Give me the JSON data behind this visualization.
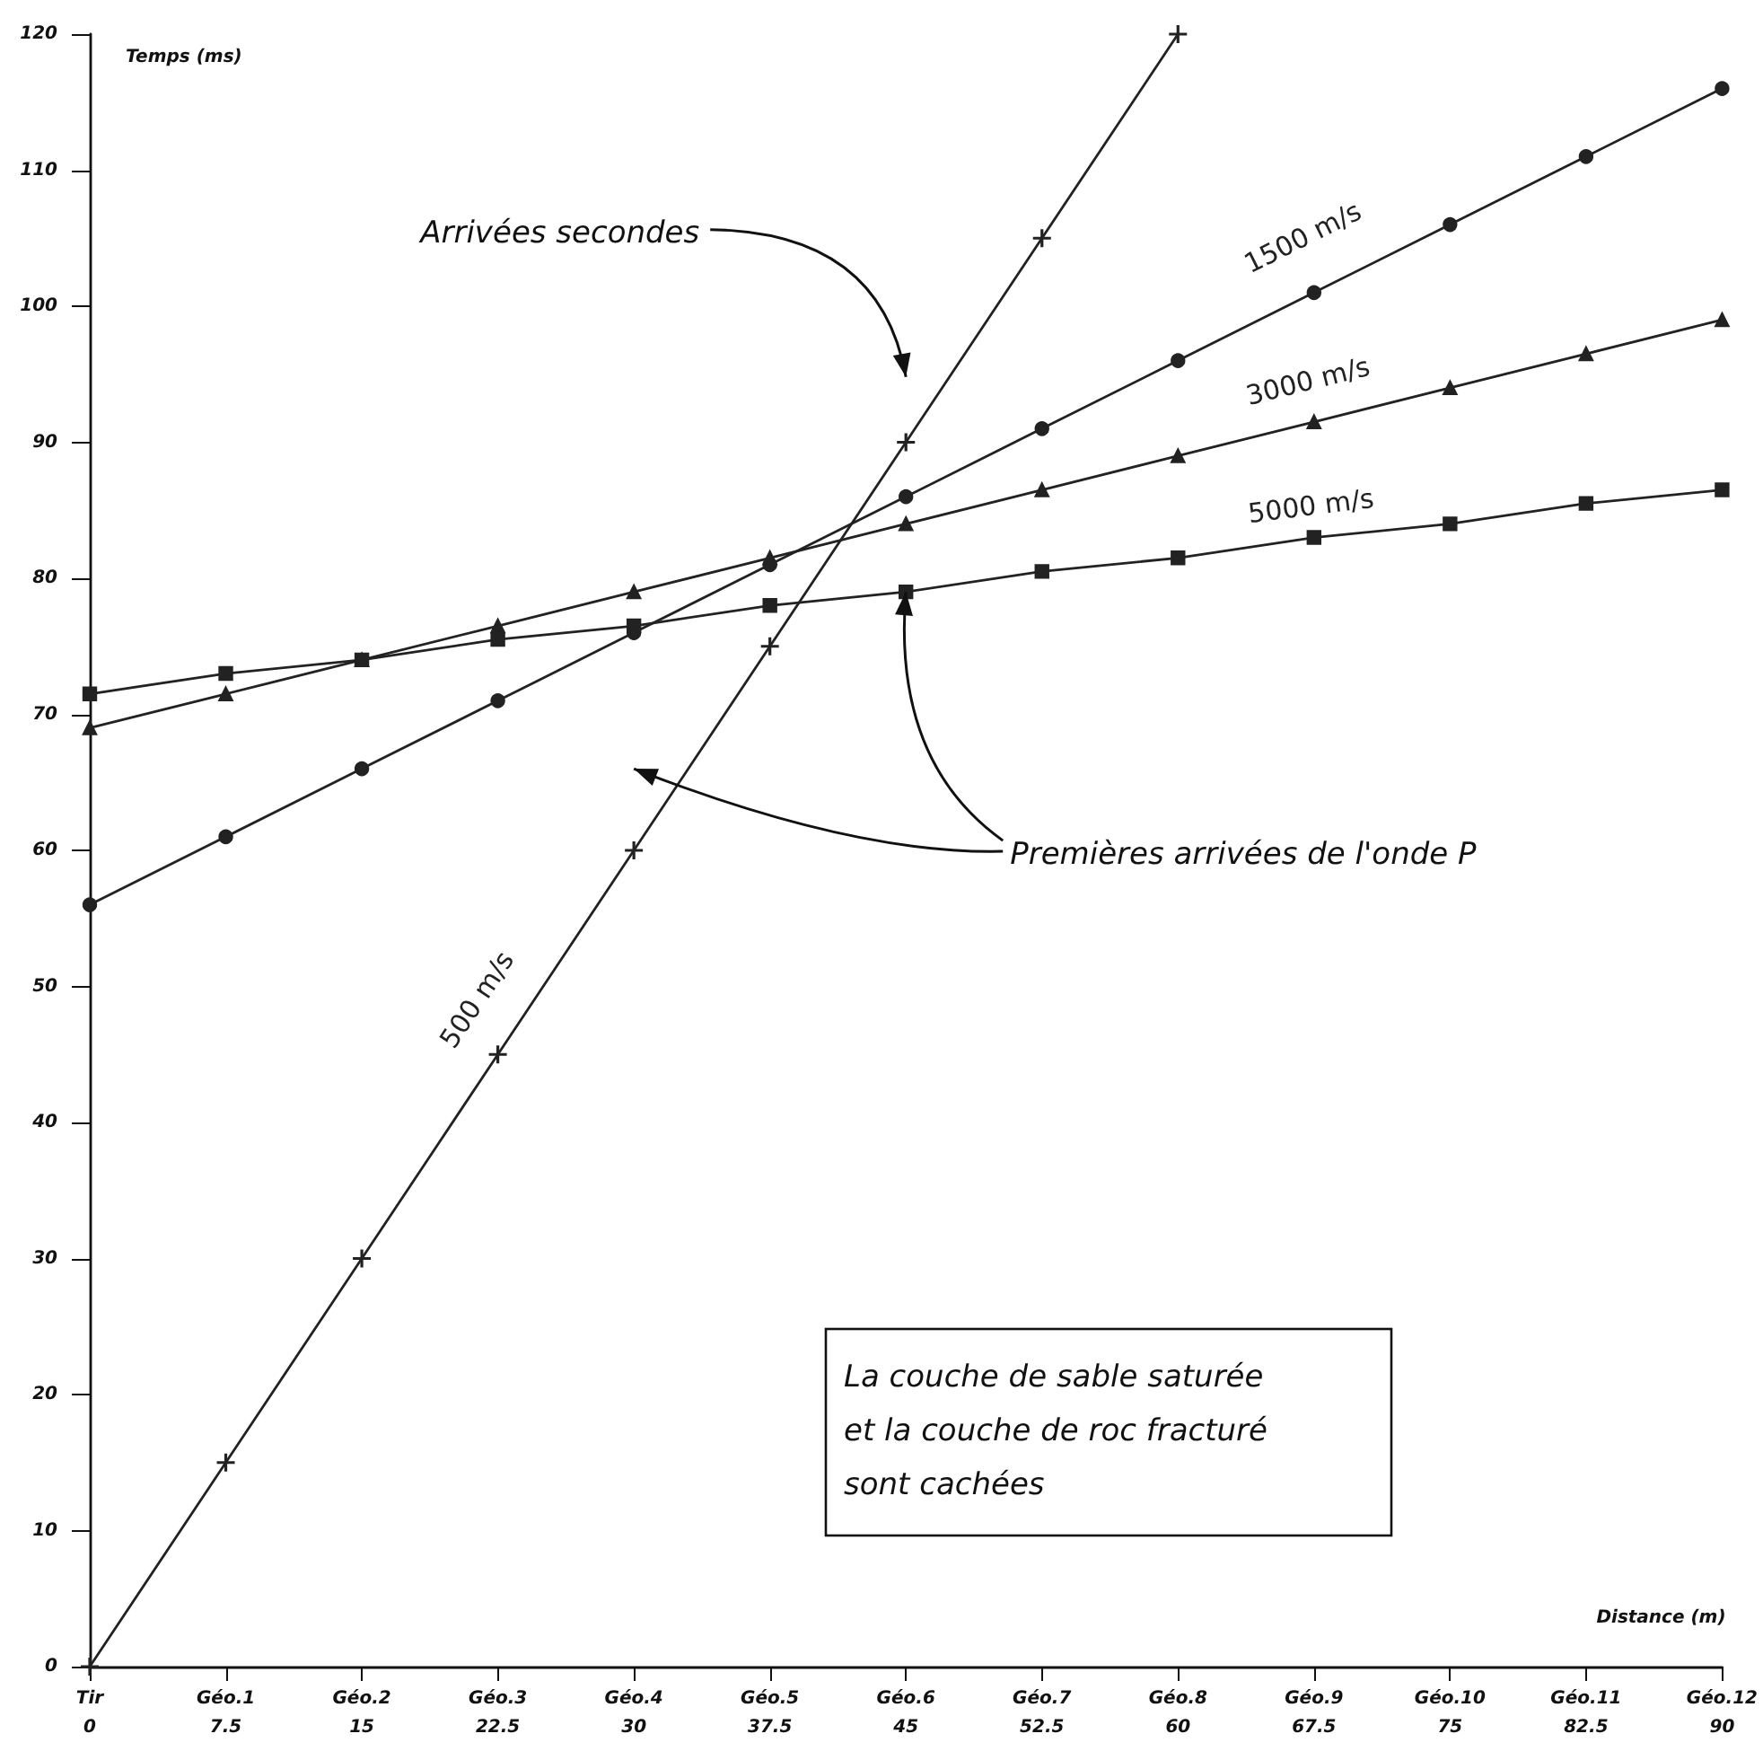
{
  "chart_data": {
    "type": "line",
    "xlabel": "Distance (m)",
    "ylabel": "Temps (ms)",
    "categories": [
      "Tir\n0",
      "Géo.1\n7.5",
      "Géo.2\n15",
      "Géo.3\n22.5",
      "Géo.4\n30",
      "Géo.5\n37.5",
      "Géo.6\n45",
      "Géo.7\n52.5",
      "Géo.8\n60",
      "Géo.9\n67.5",
      "Géo.10\n75",
      "Géo.11\n82.5",
      "Géo.12\n90"
    ],
    "ylim": [
      0,
      120
    ],
    "yticks": [
      0,
      10,
      20,
      30,
      40,
      50,
      60,
      70,
      80,
      90,
      100,
      110,
      120
    ],
    "series": [
      {
        "name": "500 m/s",
        "color": "#222222",
        "marker": "cross",
        "values": [
          0,
          15,
          30,
          45,
          60,
          75,
          90,
          105,
          120,
          null,
          null,
          null,
          null
        ]
      },
      {
        "name": "1500 m/s",
        "color": "#222222",
        "marker": "circle",
        "values": [
          56,
          61,
          66,
          71,
          76,
          81,
          86,
          91,
          96,
          101,
          106,
          111,
          116
        ]
      },
      {
        "name": "3000 m/s",
        "color": "#222222",
        "marker": "triangle",
        "values": [
          69,
          71.5,
          74,
          76.5,
          79,
          81.5,
          84,
          86.5,
          89,
          91.5,
          94,
          96.5,
          99
        ]
      },
      {
        "name": "5000 m/s",
        "color": "#222222",
        "marker": "square",
        "values": [
          71.5,
          73,
          74,
          75.5,
          76.5,
          78,
          79,
          80.5,
          81.5,
          83,
          84,
          85.5,
          86.5
        ]
      }
    ],
    "annotations": [
      "Arrivées secondes",
      {
        "text": "Premières arrivées de l'onde P",
        "x": "Géo.6\n45",
        "y": 79
      },
      "La couche de sable saturée\net la couche de roc fracturé\nsont cachées"
    ],
    "grid": false,
    "legend": false,
    "line_style": "solid"
  }
}
